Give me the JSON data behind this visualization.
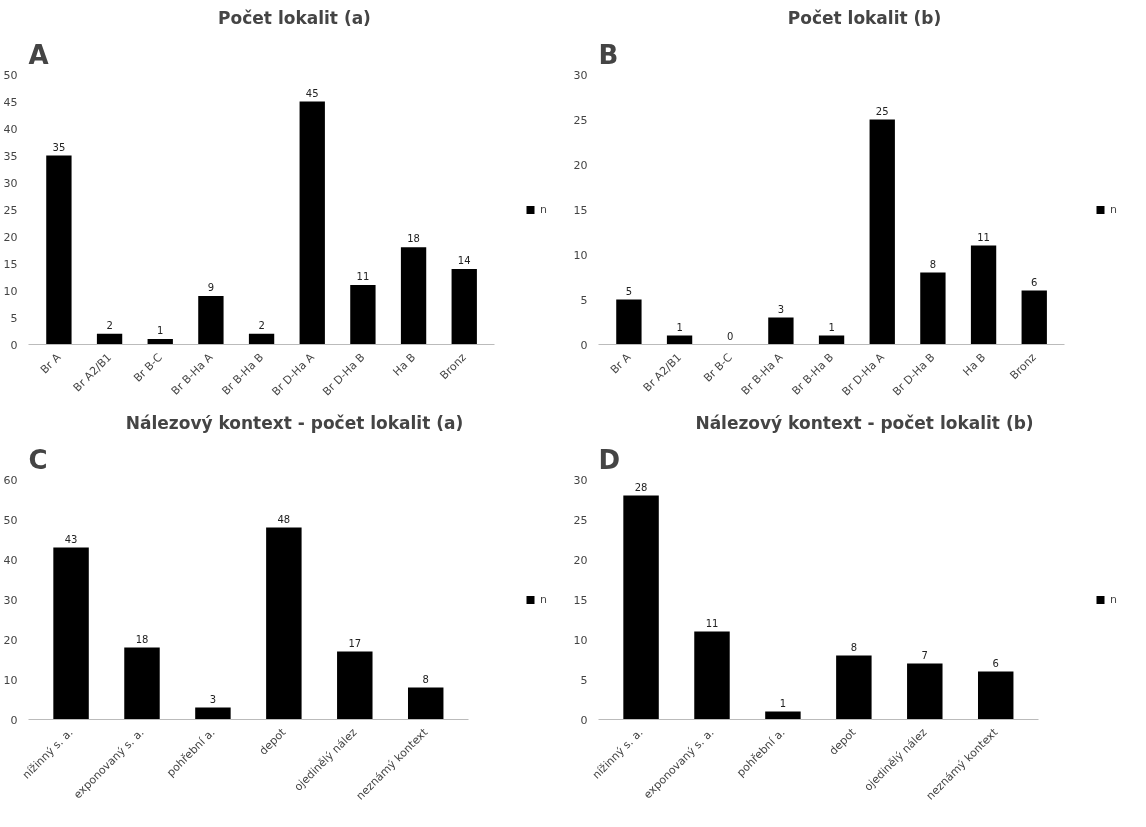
{
  "chart_data": [
    {
      "type": "bar",
      "title": "Počet lokalit (a)",
      "annotations": [
        "A"
      ],
      "categories": [
        "Br A",
        "Br A2/B1",
        "Br B-C",
        "Br B-Ha A",
        "Br B-Ha B",
        "Br D-Ha A",
        "Br D-Ha B",
        "Ha B",
        "Bronz"
      ],
      "series": [
        {
          "name": "n",
          "color": "#000000",
          "values": [
            35,
            2,
            1,
            9,
            2,
            45,
            11,
            18,
            14
          ]
        }
      ],
      "ylim": [
        0,
        50
      ],
      "yticks": [
        0,
        5,
        10,
        15,
        20,
        25,
        30,
        35,
        40,
        45,
        50
      ],
      "grid": false,
      "legend": "right",
      "data_labels": true
    },
    {
      "type": "bar",
      "title": "Počet lokalit (b)",
      "annotations": [
        "B"
      ],
      "categories": [
        "Br A",
        "Br A2/B1",
        "Br B-C",
        "Br B-Ha A",
        "Br B-Ha B",
        "Br D-Ha A",
        "Br D-Ha B",
        "Ha B",
        "Bronz"
      ],
      "series": [
        {
          "name": "n",
          "color": "#000000",
          "values": [
            5,
            1,
            0,
            3,
            1,
            25,
            8,
            11,
            6
          ]
        }
      ],
      "ylim": [
        0,
        30
      ],
      "yticks": [
        0,
        5,
        10,
        15,
        20,
        25,
        30
      ],
      "grid": false,
      "legend": "right",
      "data_labels": true
    },
    {
      "type": "bar",
      "title": "Nálezový kontext - počet lokalit (a)",
      "annotations": [
        "C"
      ],
      "categories": [
        "nížinný s. a.",
        "exponovaný s. a.",
        "pohřební a.",
        "depot",
        "ojedinělý nález",
        "neznámý kontext"
      ],
      "series": [
        {
          "name": "n",
          "color": "#000000",
          "values": [
            43,
            18,
            3,
            48,
            17,
            8
          ]
        }
      ],
      "ylim": [
        0,
        60
      ],
      "yticks": [
        0,
        10,
        20,
        30,
        40,
        50,
        60
      ],
      "grid": false,
      "legend": "right",
      "data_labels": true
    },
    {
      "type": "bar",
      "title": "Nálezový kontext - počet lokalit (b)",
      "annotations": [
        "D"
      ],
      "categories": [
        "nížinný s. a.",
        "exponovaný s. a.",
        "pohřební a.",
        "depot",
        "ojedinělý nález",
        "neznámý kontext"
      ],
      "series": [
        {
          "name": "n",
          "color": "#000000",
          "values": [
            28,
            11,
            1,
            8,
            7,
            6
          ]
        }
      ],
      "ylim": [
        0,
        30
      ],
      "yticks": [
        0,
        5,
        10,
        15,
        20,
        25,
        30
      ],
      "grid": false,
      "legend": "right",
      "data_labels": true
    }
  ]
}
